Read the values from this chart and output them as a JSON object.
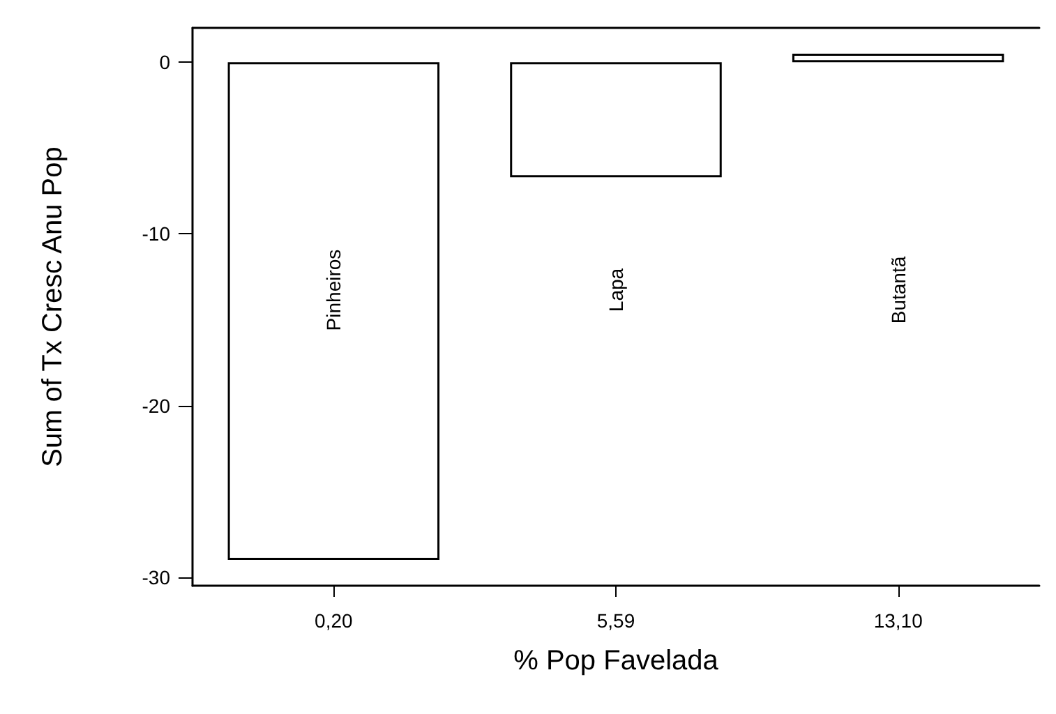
{
  "chart_data": {
    "type": "bar",
    "xlabel": "% Pop Favelada",
    "ylabel": "Sum of Tx Cresc Anu Pop",
    "categories": [
      "0,20",
      "5,59",
      "13,10"
    ],
    "values": [
      -29,
      -6.7,
      0.5
    ],
    "color": "#ffffff",
    "ylim": [
      -30.5,
      2
    ],
    "yticks": [
      0,
      -10,
      -20,
      -30
    ],
    "grid": false,
    "annotations": [
      "Pinheiros",
      "Lapa",
      "Butantã"
    ]
  }
}
